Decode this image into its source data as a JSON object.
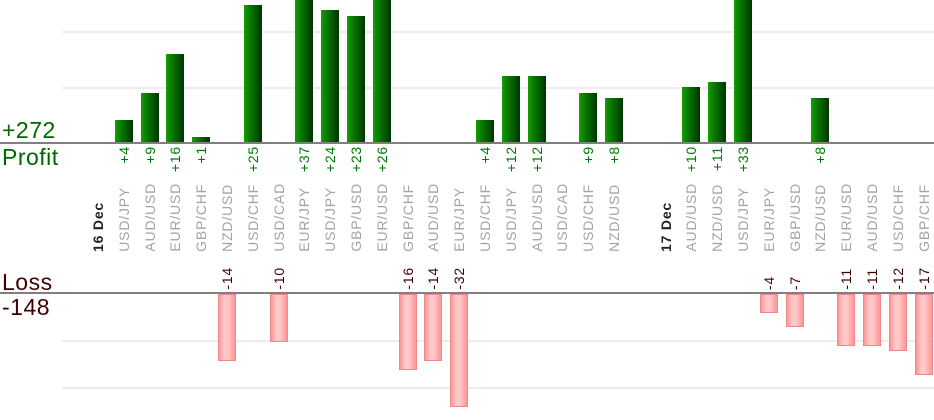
{
  "summary": {
    "profit_total": "+272",
    "profit_label": "Profit",
    "loss_label": "Loss",
    "loss_total": "-148"
  },
  "colors": {
    "profit_text": "#006600",
    "value_text_profit": "#007a00",
    "loss_text": "#400000",
    "value_text_loss": "#400000",
    "pair_text": "#a3a3a3",
    "date_text": "#222222",
    "axis_line": "#808080",
    "gridline": "#ececec",
    "bar_green_light": "#16a000",
    "bar_green_mid": "#0a7c00",
    "bar_green_dark": "#003a00",
    "bar_pink_edge": "#ff9494",
    "bar_pink_mid": "#ffc9c9",
    "bar_pink_border": "#f28989"
  },
  "chart_data": {
    "type": "bar",
    "orientation": "vertical",
    "panels": [
      {
        "name": "profit",
        "position": "top",
        "total": "+272",
        "gridline_values": [
          10,
          20
        ],
        "visible_range": [
          0,
          26
        ],
        "note": "bars above 26 are clipped by image top"
      },
      {
        "name": "loss",
        "position": "bottom",
        "total": "-148",
        "gridline_values": [
          -10,
          -20
        ],
        "visible_range": [
          0,
          -24
        ],
        "note": "bars below -24 are clipped by plot bottom"
      }
    ],
    "columns": [
      {
        "label": "16 Dec",
        "kind": "date"
      },
      {
        "label": "USD/JPY",
        "kind": "pair",
        "value": 4,
        "value_label": "+4"
      },
      {
        "label": "AUD/USD",
        "kind": "pair",
        "value": 9,
        "value_label": "+9"
      },
      {
        "label": "EUR/USD",
        "kind": "pair",
        "value": 16,
        "value_label": "+16"
      },
      {
        "label": "GBP/CHF",
        "kind": "pair",
        "value": 1,
        "value_label": "+1"
      },
      {
        "label": "NZD/USD",
        "kind": "pair",
        "value": -14,
        "value_label": "-14"
      },
      {
        "label": "USD/CHF",
        "kind": "pair",
        "value": 25,
        "value_label": "+25"
      },
      {
        "label": "USD/CAD",
        "kind": "pair",
        "value": -10,
        "value_label": "-10"
      },
      {
        "label": "EUR/JPY",
        "kind": "pair",
        "value": 37,
        "value_label": "+37"
      },
      {
        "label": "USD/JPY",
        "kind": "pair",
        "value": 24,
        "value_label": "+24"
      },
      {
        "label": "GBP/USD",
        "kind": "pair",
        "value": 23,
        "value_label": "+23"
      },
      {
        "label": "EUR/USD",
        "kind": "pair",
        "value": 26,
        "value_label": "+26"
      },
      {
        "label": "GBP/CHF",
        "kind": "pair",
        "value": -16,
        "value_label": "-16"
      },
      {
        "label": "AUD/USD",
        "kind": "pair",
        "value": -14,
        "value_label": "-14"
      },
      {
        "label": "EUR/JPY",
        "kind": "pair",
        "value": -32,
        "value_label": "-32"
      },
      {
        "label": "USD/CHF",
        "kind": "pair",
        "value": 4,
        "value_label": "+4"
      },
      {
        "label": "USD/JPY",
        "kind": "pair",
        "value": 12,
        "value_label": "+12"
      },
      {
        "label": "AUD/USD",
        "kind": "pair",
        "value": 12,
        "value_label": "+12"
      },
      {
        "label": "USD/CAD",
        "kind": "pair",
        "value": null,
        "value_label": ""
      },
      {
        "label": "USD/CHF",
        "kind": "pair",
        "value": 9,
        "value_label": "+9"
      },
      {
        "label": "NZD/USD",
        "kind": "pair",
        "value": 8,
        "value_label": "+8"
      },
      {
        "label": "17 Dec",
        "kind": "date"
      },
      {
        "label": "AUD/USD",
        "kind": "pair",
        "value": 10,
        "value_label": "+10"
      },
      {
        "label": "NZD/USD",
        "kind": "pair",
        "value": 11,
        "value_label": "+11"
      },
      {
        "label": "USD/JPY",
        "kind": "pair",
        "value": 33,
        "value_label": "+33"
      },
      {
        "label": "EUR/JPY",
        "kind": "pair",
        "value": -4,
        "value_label": "-4"
      },
      {
        "label": "GBP/USD",
        "kind": "pair",
        "value": -7,
        "value_label": "-7"
      },
      {
        "label": "NZD/USD",
        "kind": "pair",
        "value": 8,
        "value_label": "+8"
      },
      {
        "label": "EUR/USD",
        "kind": "pair",
        "value": -11,
        "value_label": "-11"
      },
      {
        "label": "AUD/USD",
        "kind": "pair",
        "value": -11,
        "value_label": "-11"
      },
      {
        "label": "USD/CHF",
        "kind": "pair",
        "value": -12,
        "value_label": "-12"
      },
      {
        "label": "GBP/CHF",
        "kind": "pair",
        "value": -17,
        "value_label": "-17"
      }
    ]
  }
}
